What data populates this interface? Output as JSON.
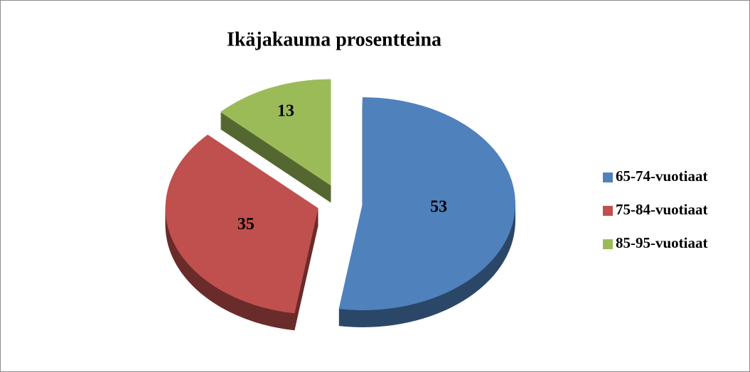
{
  "chart_data": {
    "type": "pie",
    "title": "Ikäjakauma prosentteina",
    "categories": [
      "65-74-vuotiaat",
      "75-84-vuotiaat",
      "85-95-vuotiaat"
    ],
    "values": [
      53,
      35,
      13
    ],
    "colors": [
      "#4f81bd",
      "#c0504d",
      "#9bbb59"
    ],
    "legend": "right"
  }
}
